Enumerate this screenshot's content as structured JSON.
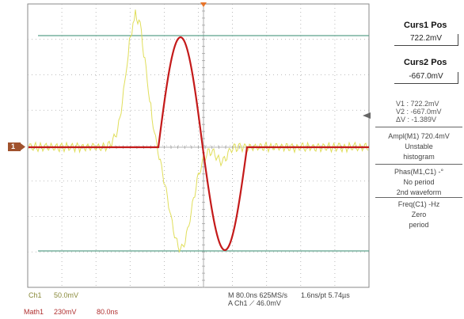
{
  "cursors": {
    "curs1_title": "Curs1 Pos",
    "curs1_value": "722.2mV",
    "curs2_title": "Curs2 Pos",
    "curs2_value": "-667.0mV"
  },
  "cursor_readout": {
    "v1": "V1 :   722.2mV",
    "v2": "V2 :  -667.0mV",
    "dv": "ΔV :   -1.389V"
  },
  "measurements": [
    {
      "line1": "Ampl(M1)      720.4mV",
      "line2": "Unstable",
      "line3": "histogram"
    },
    {
      "line1": "Phas(M1,C1) -°",
      "line2": "No period",
      "line3": "2nd waveform"
    },
    {
      "line1": "Freq(C1)       -Hz",
      "line2": "Zero",
      "line3": "period"
    }
  ],
  "channel_marker": "1",
  "bottom": {
    "ch1_name": "Ch1",
    "ch1_scale": "50.0mV",
    "math_name": "Math1",
    "math_scale": "230mV",
    "math_time": "80.0ns",
    "timebase": "M 80.0ns 625MS/s",
    "resolution": "1.6ns/pt 5.74µs",
    "trigger": "A  Ch1  ⟋  46.0mV"
  },
  "colors": {
    "ch1": "#e0de5a",
    "math": "#c41a1a",
    "cursor": "#5aa08a",
    "grid": "#9a9a9a",
    "marker": "#e8742a"
  }
}
